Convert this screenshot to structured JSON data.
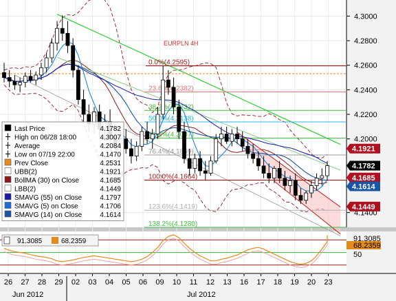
{
  "chart_data": {
    "type": "candlestick",
    "title": "EURPLN 4H",
    "price_axis": {
      "ticks": [
        "4.3000",
        "4.2800",
        "4.2600",
        "4.2400",
        "4.2200",
        "4.2000",
        "4.1400"
      ],
      "tick_values": [
        4.3,
        4.28,
        4.26,
        4.24,
        4.22,
        4.2,
        4.14
      ],
      "range": [
        4.128,
        4.312
      ],
      "markers": [
        {
          "label": "4.1921",
          "value": 4.1921,
          "color": "#b01020"
        },
        {
          "label": "4.1782",
          "value": 4.1782,
          "color": "#000000"
        },
        {
          "label": "4.1685",
          "value": 4.1685,
          "color": "#b01020"
        },
        {
          "label": "4.1614",
          "value": 4.1614,
          "color": "#1a55a6"
        },
        {
          "label": "4.1449",
          "value": 4.1449,
          "color": "#b01020"
        }
      ]
    },
    "x_axis": {
      "day_labels": [
        "26",
        "27",
        "28",
        "29",
        "02",
        "03",
        "04",
        "05",
        "06",
        "09",
        "10",
        "11",
        "12",
        "13",
        "16",
        "17",
        "18",
        "19",
        "20",
        "23"
      ],
      "month_labels": [
        "Jun 2012",
        "Jul 2012"
      ]
    },
    "fibonacci": [
      {
        "label": "0.0%(4.2595)",
        "value": 4.2595
      },
      {
        "label": "23.6%(4.2382)",
        "value": 4.2382
      },
      {
        "label": "38.2%(4.2232)",
        "value": 4.2232
      },
      {
        "label": "50.0%(4.2138)",
        "value": 4.2138
      },
      {
        "label": "61.8%(4.2007)",
        "value": 4.2007
      },
      {
        "label": "76.4%(4.1869)",
        "value": 4.1869
      },
      {
        "label": "100.0%(4.1664)",
        "value": 4.1664
      },
      {
        "label": "123.6%(4.1419)",
        "value": 4.1419
      },
      {
        "label": "138.2%(4.1280)",
        "value": 4.128
      }
    ],
    "candles": [
      {
        "o": 4.254,
        "h": 4.262,
        "l": 4.246,
        "c": 4.25
      },
      {
        "o": 4.25,
        "h": 4.256,
        "l": 4.242,
        "c": 4.247
      },
      {
        "o": 4.247,
        "h": 4.252,
        "l": 4.24,
        "c": 4.244
      },
      {
        "o": 4.244,
        "h": 4.25,
        "l": 4.238,
        "c": 4.246
      },
      {
        "o": 4.246,
        "h": 4.254,
        "l": 4.242,
        "c": 4.251
      },
      {
        "o": 4.251,
        "h": 4.256,
        "l": 4.246,
        "c": 4.248
      },
      {
        "o": 4.248,
        "h": 4.255,
        "l": 4.244,
        "c": 4.252
      },
      {
        "o": 4.252,
        "h": 4.262,
        "l": 4.248,
        "c": 4.258
      },
      {
        "o": 4.258,
        "h": 4.27,
        "l": 4.254,
        "c": 4.266
      },
      {
        "o": 4.266,
        "h": 4.282,
        "l": 4.262,
        "c": 4.278
      },
      {
        "o": 4.278,
        "h": 4.296,
        "l": 4.272,
        "c": 4.29
      },
      {
        "o": 4.29,
        "h": 4.3007,
        "l": 4.28,
        "c": 4.286
      },
      {
        "o": 4.286,
        "h": 4.296,
        "l": 4.27,
        "c": 4.276
      },
      {
        "o": 4.276,
        "h": 4.282,
        "l": 4.25,
        "c": 4.256
      },
      {
        "o": 4.256,
        "h": 4.26,
        "l": 4.228,
        "c": 4.232
      },
      {
        "o": 4.232,
        "h": 4.24,
        "l": 4.214,
        "c": 4.22
      },
      {
        "o": 4.22,
        "h": 4.228,
        "l": 4.206,
        "c": 4.212
      },
      {
        "o": 4.212,
        "h": 4.226,
        "l": 4.204,
        "c": 4.222
      },
      {
        "o": 4.222,
        "h": 4.228,
        "l": 4.2,
        "c": 4.208
      },
      {
        "o": 4.208,
        "h": 4.22,
        "l": 4.198,
        "c": 4.214
      },
      {
        "o": 4.214,
        "h": 4.224,
        "l": 4.196,
        "c": 4.202
      },
      {
        "o": 4.202,
        "h": 4.21,
        "l": 4.19,
        "c": 4.196
      },
      {
        "o": 4.196,
        "h": 4.206,
        "l": 4.186,
        "c": 4.2
      },
      {
        "o": 4.2,
        "h": 4.208,
        "l": 4.188,
        "c": 4.192
      },
      {
        "o": 4.192,
        "h": 4.2,
        "l": 4.18,
        "c": 4.186
      },
      {
        "o": 4.186,
        "h": 4.198,
        "l": 4.182,
        "c": 4.194
      },
      {
        "o": 4.194,
        "h": 4.21,
        "l": 4.19,
        "c": 4.206
      },
      {
        "o": 4.206,
        "h": 4.214,
        "l": 4.196,
        "c": 4.2
      },
      {
        "o": 4.2,
        "h": 4.208,
        "l": 4.192,
        "c": 4.204
      },
      {
        "o": 4.204,
        "h": 4.226,
        "l": 4.2,
        "c": 4.22
      },
      {
        "o": 4.22,
        "h": 4.2595,
        "l": 4.216,
        "c": 4.248
      },
      {
        "o": 4.248,
        "h": 4.256,
        "l": 4.236,
        "c": 4.242
      },
      {
        "o": 4.242,
        "h": 4.25,
        "l": 4.22,
        "c": 4.226
      },
      {
        "o": 4.226,
        "h": 4.232,
        "l": 4.2,
        "c": 4.206
      },
      {
        "o": 4.206,
        "h": 4.214,
        "l": 4.18,
        "c": 4.184
      },
      {
        "o": 4.184,
        "h": 4.192,
        "l": 4.17,
        "c": 4.176
      },
      {
        "o": 4.176,
        "h": 4.188,
        "l": 4.172,
        "c": 4.184
      },
      {
        "o": 4.184,
        "h": 4.19,
        "l": 4.17,
        "c": 4.174
      },
      {
        "o": 4.174,
        "h": 4.182,
        "l": 4.166,
        "c": 4.172
      },
      {
        "o": 4.172,
        "h": 4.186,
        "l": 4.17,
        "c": 4.182
      },
      {
        "o": 4.182,
        "h": 4.204,
        "l": 4.18,
        "c": 4.2
      },
      {
        "o": 4.2,
        "h": 4.21,
        "l": 4.194,
        "c": 4.204
      },
      {
        "o": 4.204,
        "h": 4.21,
        "l": 4.196,
        "c": 4.198
      },
      {
        "o": 4.198,
        "h": 4.208,
        "l": 4.194,
        "c": 4.204
      },
      {
        "o": 4.204,
        "h": 4.21,
        "l": 4.196,
        "c": 4.2
      },
      {
        "o": 4.2,
        "h": 4.206,
        "l": 4.19,
        "c": 4.194
      },
      {
        "o": 4.194,
        "h": 4.2,
        "l": 4.184,
        "c": 4.188
      },
      {
        "o": 4.188,
        "h": 4.196,
        "l": 4.18,
        "c": 4.184
      },
      {
        "o": 4.184,
        "h": 4.19,
        "l": 4.174,
        "c": 4.178
      },
      {
        "o": 4.178,
        "h": 4.186,
        "l": 4.168,
        "c": 4.172
      },
      {
        "o": 4.172,
        "h": 4.18,
        "l": 4.164,
        "c": 4.168
      },
      {
        "o": 4.168,
        "h": 4.178,
        "l": 4.164,
        "c": 4.176
      },
      {
        "o": 4.176,
        "h": 4.182,
        "l": 4.164,
        "c": 4.168
      },
      {
        "o": 4.168,
        "h": 4.174,
        "l": 4.158,
        "c": 4.162
      },
      {
        "o": 4.162,
        "h": 4.17,
        "l": 4.156,
        "c": 4.166
      },
      {
        "o": 4.166,
        "h": 4.172,
        "l": 4.15,
        "c": 4.154
      },
      {
        "o": 4.154,
        "h": 4.16,
        "l": 4.147,
        "c": 4.15
      },
      {
        "o": 4.15,
        "h": 4.158,
        "l": 4.147,
        "c": 4.156
      },
      {
        "o": 4.156,
        "h": 4.166,
        "l": 4.152,
        "c": 4.162
      },
      {
        "o": 4.162,
        "h": 4.172,
        "l": 4.158,
        "c": 4.168
      },
      {
        "o": 4.168,
        "h": 4.176,
        "l": 4.162,
        "c": 4.17
      },
      {
        "o": 4.17,
        "h": 4.182,
        "l": 4.166,
        "c": 4.1782
      }
    ],
    "legend": [
      {
        "label": "Last Price",
        "value": "4.1782",
        "swatch": "#000000"
      },
      {
        "label": "High on 06/28 18:00",
        "value": "4.3007",
        "swatch": "glyph-high"
      },
      {
        "label": "Average",
        "value": "4.2084",
        "swatch": "glyph-avg"
      },
      {
        "label": "Low on 07/19 22:00",
        "value": "4.1470",
        "swatch": "glyph-low"
      },
      {
        "label": "Prev Close",
        "value": "4.2531",
        "swatch": "#e58a1c"
      },
      {
        "label": "UBB(2)",
        "value": "4.1921",
        "swatch": "#ffffff"
      },
      {
        "label": "BollMA (30) on Close",
        "value": "4.1685",
        "swatch": "#8b1a1a"
      },
      {
        "label": "LBB(2)",
        "value": "4.1449",
        "swatch": "#ffffff"
      },
      {
        "label": "SMAVG (55) on Close",
        "value": "4.1797",
        "swatch": "#1a1aa8"
      },
      {
        "label": "SMAVG (5) on Close",
        "value": "4.1706",
        "swatch": "#1a6ed8"
      },
      {
        "label": "SMAVG (14) on Close",
        "value": "4.1614",
        "swatch": "#1a55a6"
      }
    ],
    "oscillator": {
      "legend_values": [
        "91.3085",
        "68.2359"
      ],
      "axis_labels": [
        {
          "label": "91.3085",
          "color": "#000000"
        },
        {
          "label": "68.2359",
          "color": "#e58a1c"
        },
        {
          "label": "50",
          "color": "#000000"
        }
      ]
    }
  }
}
